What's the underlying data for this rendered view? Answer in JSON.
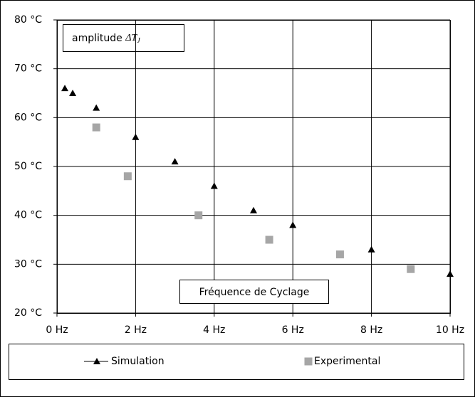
{
  "chart_data": {
    "type": "scatter",
    "annotation": {
      "text": "amplitude",
      "symbol": "ΔT",
      "subscript": "J"
    },
    "x_label": "Fréquence de Cyclage",
    "series": [
      {
        "name": "Simulation",
        "color": "#000000",
        "marker": "triangle",
        "x": [
          0.2,
          0.4,
          1,
          2,
          3,
          4,
          5,
          6,
          8,
          10
        ],
        "values": [
          66,
          65,
          62,
          56,
          51,
          46,
          41,
          38,
          33,
          28
        ]
      },
      {
        "name": "Experimental",
        "color": "#a6a6a6",
        "marker": "square",
        "x": [
          1,
          1.8,
          3.6,
          5.4,
          7.2,
          9
        ],
        "values": [
          58,
          48,
          40,
          35,
          32,
          29
        ]
      }
    ],
    "xlim": [
      0,
      10
    ],
    "xticks": [
      {
        "value": 0,
        "label": "0 Hz"
      },
      {
        "value": 2,
        "label": "2 Hz"
      },
      {
        "value": 4,
        "label": "4 Hz"
      },
      {
        "value": 6,
        "label": "6 Hz"
      },
      {
        "value": 8,
        "label": "8 Hz"
      },
      {
        "value": 10,
        "label": "10 Hz"
      }
    ],
    "ylim": [
      20,
      80
    ],
    "yticks": [
      {
        "value": 20,
        "label": "20 °C"
      },
      {
        "value": 30,
        "label": "30 °C"
      },
      {
        "value": 40,
        "label": "40 °C"
      },
      {
        "value": 50,
        "label": "50 °C"
      },
      {
        "value": 60,
        "label": "60 °C"
      },
      {
        "value": 70,
        "label": "70 °C"
      },
      {
        "value": 80,
        "label": "80 °C"
      }
    ],
    "grid": true,
    "legend": "bottom"
  }
}
